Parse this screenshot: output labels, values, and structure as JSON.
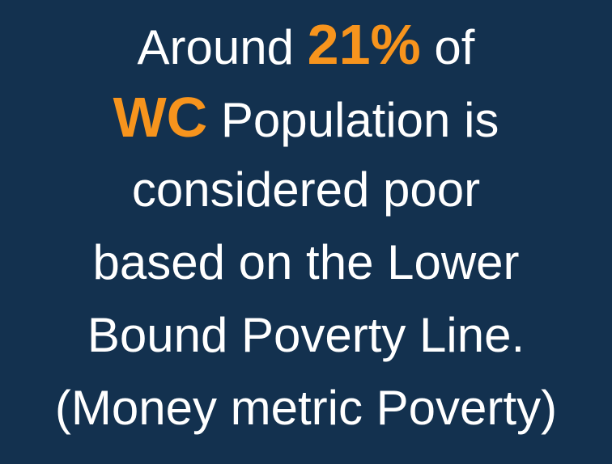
{
  "lines": [
    [
      "Around ",
      "21%",
      " of"
    ],
    [
      "WC",
      " Population is"
    ],
    [
      "considered poor"
    ],
    [
      "based on the Lower"
    ],
    [
      "Bound Poverty Line."
    ],
    [
      "(Money metric Poverty)"
    ]
  ]
}
